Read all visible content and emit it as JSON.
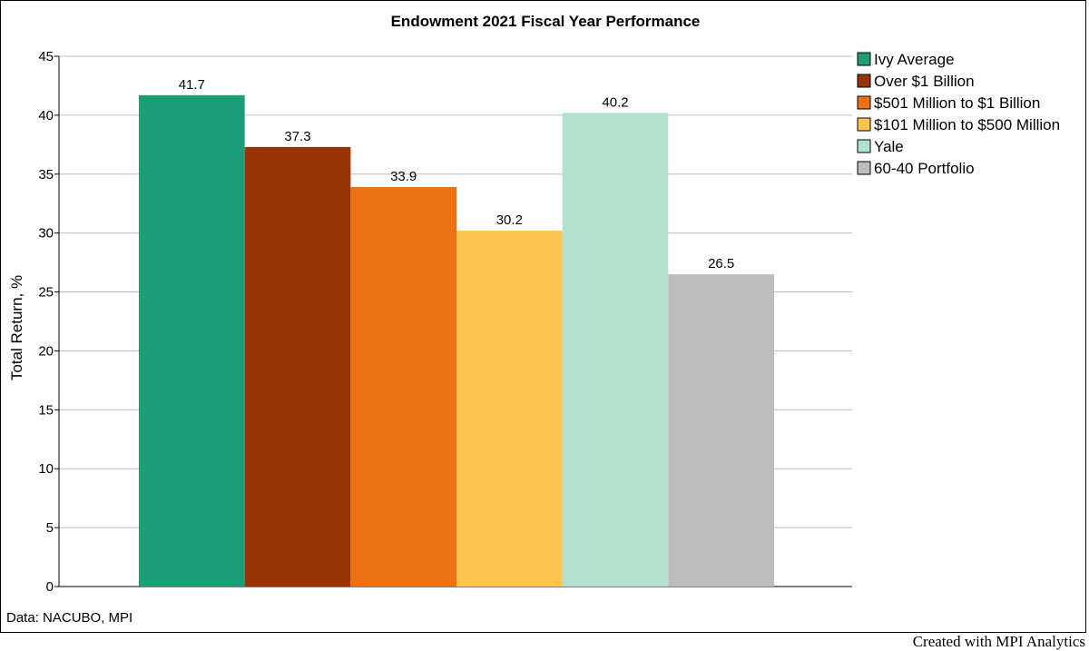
{
  "chart_data": {
    "type": "bar",
    "title": "Endowment 2021 Fiscal Year Performance",
    "xlabel": "",
    "ylabel": "Total Return, %",
    "ylim": [
      0,
      45
    ],
    "yticks": [
      0,
      5,
      10,
      15,
      20,
      25,
      30,
      35,
      40,
      45
    ],
    "grid": true,
    "legend_position": "right",
    "series": [
      {
        "name": "Ivy Average",
        "value": 41.7,
        "label": "41.7",
        "color": "#1b9e77"
      },
      {
        "name": "Over $1 Billion",
        "value": 37.3,
        "label": "37.3",
        "color": "#993404"
      },
      {
        "name": "$501 Million to $1 Billion",
        "value": 33.9,
        "label": "33.9",
        "color": "#ec7014"
      },
      {
        "name": "$101 Million to $500 Million",
        "value": 30.2,
        "label": "30.2",
        "color": "#fec44f"
      },
      {
        "name": "Yale",
        "value": 40.2,
        "label": "40.2",
        "color": "#b2e2cd"
      },
      {
        "name": "60-40 Portfolio",
        "value": 26.5,
        "label": "26.5",
        "color": "#bdbdbd"
      }
    ]
  },
  "source_note": "Data: NACUBO, MPI",
  "credit": "Created with MPI Analytics"
}
